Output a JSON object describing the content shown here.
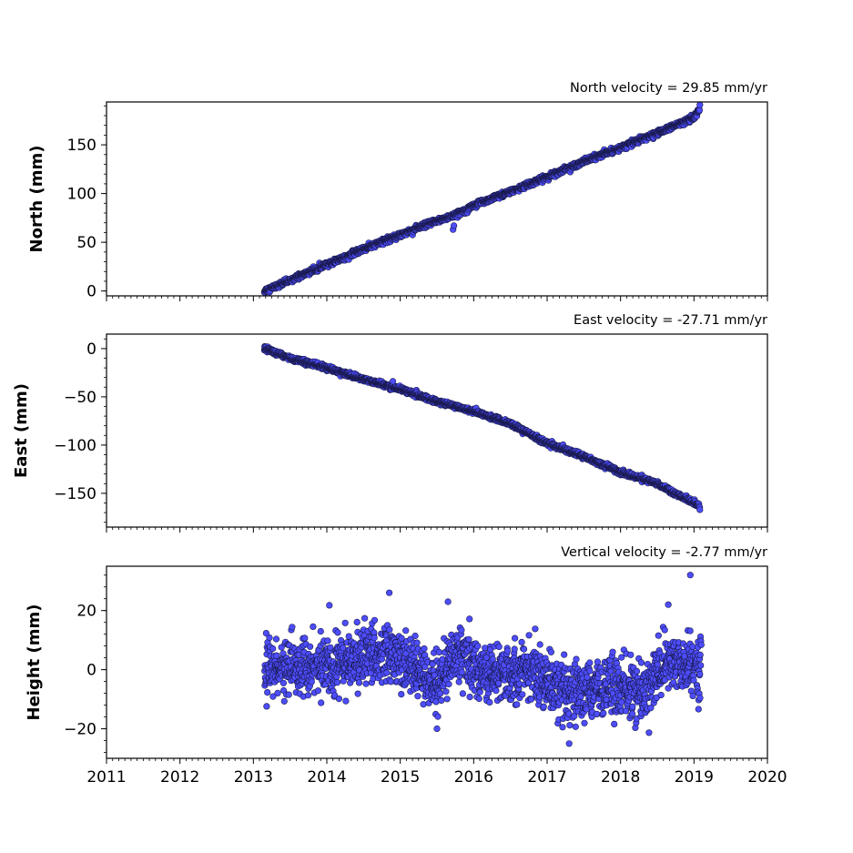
{
  "chart_data": [
    {
      "type": "scatter",
      "title": "North velocity = 29.85 mm/yr",
      "ylabel": "North (mm)",
      "xlim": [
        2011,
        2020
      ],
      "ylim": [
        -5,
        194
      ],
      "yticks": [
        0,
        50,
        100,
        150
      ],
      "xticks": [
        2011,
        2012,
        2013,
        2014,
        2015,
        2016,
        2017,
        2018,
        2019,
        2020
      ],
      "series": [
        {
          "trend": [
            [
              2013.15,
              0
            ],
            [
              2013.5,
              11
            ],
            [
              2014.0,
              27
            ],
            [
              2014.5,
              43
            ],
            [
              2015.0,
              58
            ],
            [
              2015.5,
              72
            ],
            [
              2015.75,
              78
            ],
            [
              2016.0,
              88
            ],
            [
              2016.5,
              102
            ],
            [
              2017.0,
              117
            ],
            [
              2017.5,
              133
            ],
            [
              2018.0,
              147
            ],
            [
              2018.5,
              162
            ],
            [
              2019.0,
              178
            ],
            [
              2019.08,
              186
            ]
          ],
          "outliers": [
            [
              2015.72,
              63
            ],
            [
              2015.73,
              67
            ],
            [
              2019.08,
              191
            ]
          ],
          "noise_mm": 1.3
        }
      ]
    },
    {
      "type": "scatter",
      "title": "East velocity = -27.71 mm/yr",
      "ylabel": "East (mm)",
      "xlim": [
        2011,
        2020
      ],
      "ylim": [
        -185,
        15
      ],
      "yticks": [
        0,
        -50,
        -100,
        -150
      ],
      "xticks": [
        2011,
        2012,
        2013,
        2014,
        2015,
        2016,
        2017,
        2018,
        2019,
        2020
      ],
      "series": [
        {
          "trend": [
            [
              2013.15,
              0
            ],
            [
              2013.5,
              -10
            ],
            [
              2014.0,
              -20
            ],
            [
              2014.5,
              -32
            ],
            [
              2015.0,
              -42
            ],
            [
              2015.5,
              -55
            ],
            [
              2016.0,
              -65
            ],
            [
              2016.5,
              -78
            ],
            [
              2017.0,
              -98
            ],
            [
              2017.5,
              -112
            ],
            [
              2018.0,
              -128
            ],
            [
              2018.5,
              -140
            ],
            [
              2019.0,
              -160
            ],
            [
              2019.08,
              -164
            ]
          ],
          "outliers": [
            [
              2014.9,
              -34
            ],
            [
              2019.08,
              -167
            ]
          ],
          "noise_mm": 1.2
        }
      ]
    },
    {
      "type": "scatter",
      "title": "Vertical velocity = -2.77 mm/yr",
      "ylabel": "Height (mm)",
      "xlim": [
        2011,
        2020
      ],
      "ylim": [
        -30,
        35
      ],
      "yticks": [
        -20,
        0,
        20
      ],
      "xticks": [
        2011,
        2012,
        2013,
        2014,
        2015,
        2016,
        2017,
        2018,
        2019,
        2020
      ],
      "series": [
        {
          "trend": [
            [
              2013.15,
              1
            ],
            [
              2014.0,
              1
            ],
            [
              2014.8,
              6
            ],
            [
              2015.3,
              -2
            ],
            [
              2015.5,
              -4
            ],
            [
              2015.8,
              6
            ],
            [
              2016.2,
              -2
            ],
            [
              2016.8,
              0
            ],
            [
              2017.3,
              -10
            ],
            [
              2017.8,
              -5
            ],
            [
              2018.3,
              -8
            ],
            [
              2018.6,
              2
            ],
            [
              2019.1,
              1
            ]
          ],
          "outliers": [
            [
              2018.95,
              32
            ],
            [
              2014.85,
              26
            ],
            [
              2015.5,
              -20
            ],
            [
              2017.3,
              -25
            ],
            [
              2015.65,
              23
            ],
            [
              2018.65,
              22
            ]
          ],
          "noise_mm": 4.8
        }
      ]
    }
  ],
  "colors": {
    "marker_fill": "#4d4dff",
    "marker_edge": "#1a1a4d"
  }
}
